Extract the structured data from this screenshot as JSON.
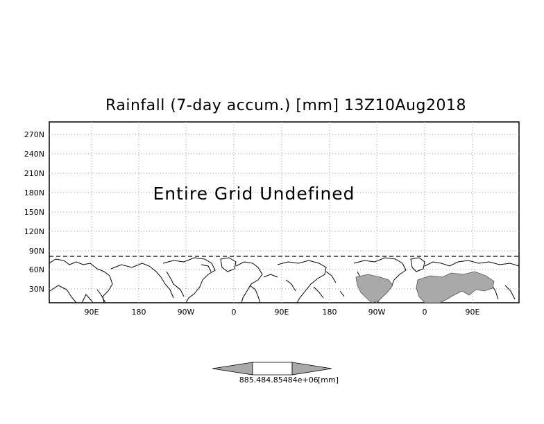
{
  "title": "Rainfall (7-day accum.) [mm] 13Z10Aug2018",
  "map": {
    "message": "Entire Grid Undefined",
    "y_ticks": [
      "270N",
      "240N",
      "210N",
      "180N",
      "150N",
      "120N",
      "90N",
      "60N",
      "30N"
    ],
    "x_ticks": [
      "90E",
      "180",
      "90W",
      "0",
      "90E",
      "180",
      "90W",
      "0",
      "90E"
    ],
    "grid": true,
    "shaded_regions": [
      "north-america-2nd-copy",
      "africa-asia-2nd-copy"
    ]
  },
  "colorbar": {
    "labels": [
      "885.48",
      "4.85484e+06",
      "[mm]"
    ],
    "colors": {
      "low": "#a9a9a9",
      "mid": "#ffffff",
      "high": "#a9a9a9"
    }
  },
  "colors": {
    "shade": "#a9a9a9",
    "coast": "#000000",
    "grid": "#999999"
  }
}
